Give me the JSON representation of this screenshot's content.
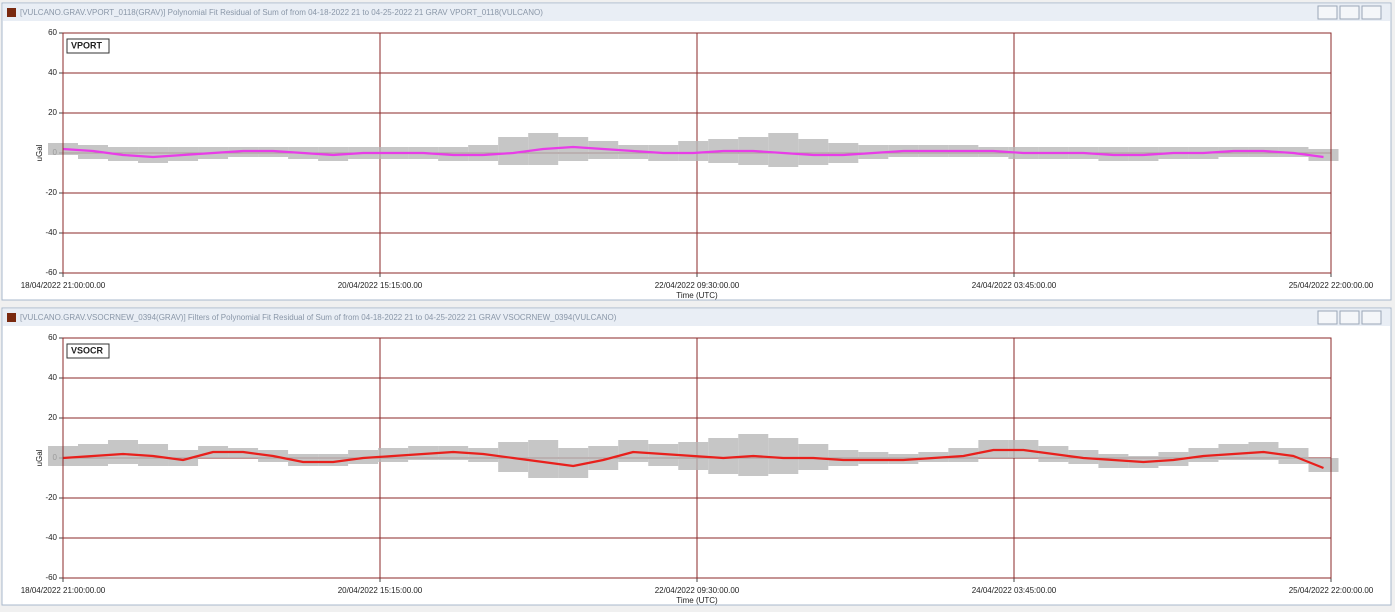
{
  "chart_data": [
    {
      "type": "line",
      "window_title": "[VULCANO.GRAV.VPORT_0118(GRAV)] Polynomial Fit Residual of Sum of from 04-18-2022 21 to 04-25-2022 21 GRAV VPORT_0118(VULCANO)",
      "label": "VPORT",
      "xlabel": "Time (UTC)",
      "ylabel": "uGal",
      "x": [
        "2022-04-18T21:00",
        "2022-04-19T01:00",
        "2022-04-19T05:00",
        "2022-04-19T09:00",
        "2022-04-19T13:00",
        "2022-04-19T17:00",
        "2022-04-19T21:00",
        "2022-04-20T01:00",
        "2022-04-20T05:00",
        "2022-04-20T09:00",
        "2022-04-20T13:00",
        "2022-04-20T17:00",
        "2022-04-20T21:00",
        "2022-04-21T01:00",
        "2022-04-21T05:00",
        "2022-04-21T09:00",
        "2022-04-21T13:00",
        "2022-04-21T17:00",
        "2022-04-21T21:00",
        "2022-04-22T01:00",
        "2022-04-22T05:00",
        "2022-04-22T09:00",
        "2022-04-22T13:00",
        "2022-04-22T17:00",
        "2022-04-22T21:00",
        "2022-04-23T01:00",
        "2022-04-23T05:00",
        "2022-04-23T09:00",
        "2022-04-23T13:00",
        "2022-04-23T17:00",
        "2022-04-23T21:00",
        "2022-04-24T01:00",
        "2022-04-24T05:00",
        "2022-04-24T09:00",
        "2022-04-24T13:00",
        "2022-04-24T17:00",
        "2022-04-24T21:00",
        "2022-04-25T01:00",
        "2022-04-25T05:00",
        "2022-04-25T09:00",
        "2022-04-25T13:00",
        "2022-04-25T17:00",
        "2022-04-25T21:00"
      ],
      "series": [
        {
          "color": "#b8b8b8",
          "high": [
            5,
            4,
            3,
            3,
            3,
            3,
            3,
            3,
            3,
            3,
            3,
            3,
            3,
            3,
            4,
            8,
            10,
            8,
            6,
            4,
            4,
            6,
            7,
            8,
            10,
            7,
            5,
            4,
            4,
            4,
            4,
            3,
            3,
            3,
            3,
            3,
            3,
            3,
            3,
            3,
            3,
            3,
            2
          ],
          "low": [
            -1,
            -3,
            -4,
            -5,
            -4,
            -3,
            -2,
            -2,
            -3,
            -4,
            -3,
            -3,
            -3,
            -4,
            -4,
            -6,
            -6,
            -4,
            -3,
            -3,
            -4,
            -4,
            -5,
            -6,
            -7,
            -6,
            -5,
            -3,
            -2,
            -2,
            -2,
            -2,
            -3,
            -3,
            -3,
            -4,
            -4,
            -3,
            -3,
            -2,
            -2,
            -2,
            -4
          ]
        },
        {
          "color": "#e83ce8",
          "values": [
            2,
            1,
            -1,
            -2,
            -1,
            0,
            1,
            1,
            0,
            -1,
            0,
            0,
            0,
            -1,
            -1,
            0,
            2,
            3,
            2,
            1,
            0,
            0,
            1,
            1,
            0,
            -1,
            -1,
            0,
            1,
            1,
            1,
            1,
            0,
            0,
            0,
            -1,
            -1,
            0,
            0,
            1,
            1,
            0,
            -2
          ]
        }
      ],
      "xlim": [
        "2022-04-18T21:00",
        "2022-04-25T22:00"
      ],
      "xticks": [
        {
          "value": "2022-04-18T21:00",
          "label": "18/04/2022 21:00:00.00"
        },
        {
          "value": "2022-04-20T15:15",
          "label": "20/04/2022 15:15:00.00"
        },
        {
          "value": "2022-04-22T09:30",
          "label": "22/04/2022 09:30:00.00"
        },
        {
          "value": "2022-04-24T03:45",
          "label": "24/04/2022 03:45:00.00"
        },
        {
          "value": "2022-04-25T22:00",
          "label": "25/04/2022 22:00:00.00"
        }
      ],
      "ylim": [
        -60,
        60
      ],
      "yticks": [
        -60,
        -40,
        -20,
        0,
        20,
        40,
        60
      ],
      "grid": true,
      "grid_color": "#8b2a2a"
    },
    {
      "type": "line",
      "window_title": "[VULCANO.GRAV.VSOCRNEW_0394(GRAV)] Filters of Polynomial Fit Residual of Sum of from 04-18-2022 21 to 04-25-2022 21 GRAV VSOCRNEW_0394(VULCANO)",
      "label": "VSOCR",
      "xlabel": "Time (UTC)",
      "ylabel": "uGal",
      "x": [
        "2022-04-18T21:00",
        "2022-04-19T01:00",
        "2022-04-19T05:00",
        "2022-04-19T09:00",
        "2022-04-19T13:00",
        "2022-04-19T17:00",
        "2022-04-19T21:00",
        "2022-04-20T01:00",
        "2022-04-20T05:00",
        "2022-04-20T09:00",
        "2022-04-20T13:00",
        "2022-04-20T17:00",
        "2022-04-20T21:00",
        "2022-04-21T01:00",
        "2022-04-21T05:00",
        "2022-04-21T09:00",
        "2022-04-21T13:00",
        "2022-04-21T17:00",
        "2022-04-21T21:00",
        "2022-04-22T01:00",
        "2022-04-22T05:00",
        "2022-04-22T09:00",
        "2022-04-22T13:00",
        "2022-04-22T17:00",
        "2022-04-22T21:00",
        "2022-04-23T01:00",
        "2022-04-23T05:00",
        "2022-04-23T09:00",
        "2022-04-23T13:00",
        "2022-04-23T17:00",
        "2022-04-23T21:00",
        "2022-04-24T01:00",
        "2022-04-24T05:00",
        "2022-04-24T09:00",
        "2022-04-24T13:00",
        "2022-04-24T17:00",
        "2022-04-24T21:00",
        "2022-04-25T01:00",
        "2022-04-25T05:00",
        "2022-04-25T09:00",
        "2022-04-25T13:00",
        "2022-04-25T17:00",
        "2022-04-25T21:00"
      ],
      "series": [
        {
          "color": "#b8b8b8",
          "high": [
            6,
            7,
            9,
            7,
            4,
            6,
            5,
            4,
            2,
            2,
            4,
            5,
            6,
            6,
            5,
            8,
            9,
            5,
            6,
            9,
            7,
            8,
            10,
            12,
            10,
            7,
            4,
            3,
            2,
            3,
            5,
            9,
            9,
            6,
            4,
            2,
            1,
            3,
            5,
            7,
            8,
            5,
            0
          ],
          "low": [
            -4,
            -4,
            -3,
            -4,
            -4,
            0,
            0,
            -2,
            -4,
            -4,
            -3,
            -2,
            -1,
            -1,
            -2,
            -7,
            -10,
            -10,
            -6,
            -2,
            -4,
            -6,
            -8,
            -9,
            -8,
            -6,
            -4,
            -3,
            -3,
            -2,
            -2,
            0,
            0,
            -2,
            -3,
            -5,
            -5,
            -4,
            -2,
            -1,
            -1,
            -3,
            -7
          ]
        },
        {
          "color": "#e8201c",
          "values": [
            0,
            1,
            2,
            1,
            -1,
            3,
            3,
            1,
            -2,
            -2,
            0,
            1,
            2,
            3,
            2,
            0,
            -2,
            -4,
            -1,
            3,
            2,
            1,
            0,
            1,
            0,
            0,
            -1,
            -1,
            -1,
            0,
            1,
            4,
            4,
            2,
            0,
            -1,
            -2,
            -1,
            1,
            2,
            3,
            1,
            -5
          ]
        }
      ],
      "xlim": [
        "2022-04-18T21:00",
        "2022-04-25T22:00"
      ],
      "xticks": [
        {
          "value": "2022-04-18T21:00",
          "label": "18/04/2022 21:00:00.00"
        },
        {
          "value": "2022-04-20T15:15",
          "label": "20/04/2022 15:15:00.00"
        },
        {
          "value": "2022-04-22T09:30",
          "label": "22/04/2022 09:30:00.00"
        },
        {
          "value": "2022-04-24T03:45",
          "label": "24/04/2022 03:45:00.00"
        },
        {
          "value": "2022-04-25T22:00",
          "label": "25/04/2022 22:00:00.00"
        }
      ],
      "ylim": [
        -60,
        60
      ],
      "yticks": [
        -60,
        -40,
        -20,
        0,
        20,
        40,
        60
      ],
      "grid": true,
      "grid_color": "#8b2a2a"
    }
  ]
}
